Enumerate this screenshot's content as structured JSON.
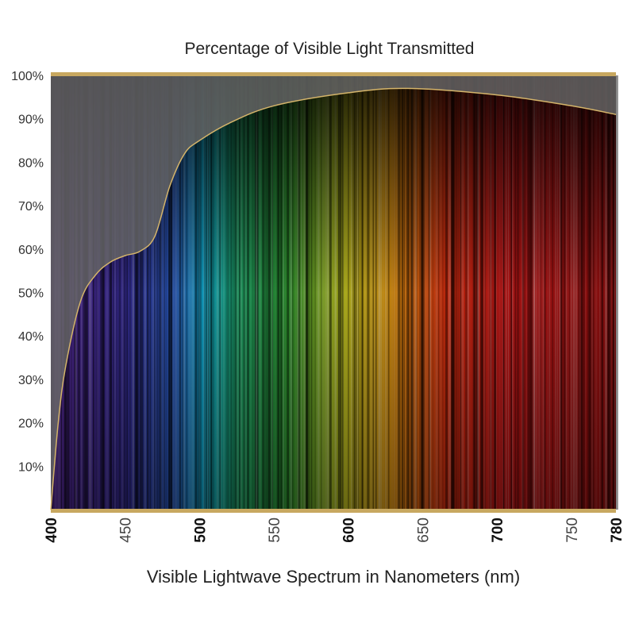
{
  "chart_data": {
    "type": "area",
    "title": "Percentage of Visible Light Transmitted",
    "xlabel": "Visible Lightwave Spectrum in Nanometers (nm)",
    "ylabel": "",
    "xlim": [
      400,
      780
    ],
    "ylim": [
      0,
      100
    ],
    "x_ticks": [
      {
        "value": 400,
        "label": "400",
        "bold": true
      },
      {
        "value": 450,
        "label": "450",
        "bold": false
      },
      {
        "value": 500,
        "label": "500",
        "bold": true
      },
      {
        "value": 550,
        "label": "550",
        "bold": false
      },
      {
        "value": 600,
        "label": "600",
        "bold": true
      },
      {
        "value": 650,
        "label": "650",
        "bold": false
      },
      {
        "value": 700,
        "label": "700",
        "bold": true
      },
      {
        "value": 750,
        "label": "750",
        "bold": false
      },
      {
        "value": 780,
        "label": "780",
        "bold": true
      }
    ],
    "y_ticks": [
      {
        "value": 10,
        "label": "10%"
      },
      {
        "value": 20,
        "label": "20%"
      },
      {
        "value": 30,
        "label": "30%"
      },
      {
        "value": 40,
        "label": "40%"
      },
      {
        "value": 50,
        "label": "50%"
      },
      {
        "value": 60,
        "label": "60%"
      },
      {
        "value": 70,
        "label": "70%"
      },
      {
        "value": 80,
        "label": "80%"
      },
      {
        "value": 90,
        "label": "90%"
      },
      {
        "value": 100,
        "label": "100%"
      }
    ],
    "grid": false,
    "series": [
      {
        "x": [
          400,
          405,
          410,
          420,
          430,
          440,
          450,
          460,
          470,
          480,
          490,
          500,
          520,
          550,
          600,
          640,
          700,
          750,
          780
        ],
        "y": [
          0,
          20,
          33,
          48,
          54,
          57,
          58.5,
          59.5,
          63,
          74.5,
          82,
          85,
          89,
          93,
          96,
          97,
          95.5,
          93,
          91
        ]
      }
    ],
    "colors": {
      "curve": "#d4b46a",
      "frame": "#c8a860",
      "overlay": "#666666"
    }
  }
}
